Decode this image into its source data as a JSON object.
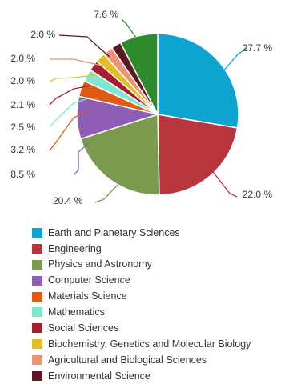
{
  "chart_data": {
    "type": "pie",
    "title": "",
    "start": "12 o'clock",
    "direction": "clockwise",
    "slices": [
      {
        "label": "Earth and Planetary Sciences",
        "value": 27.7,
        "display": "27.7 %",
        "color": "#0fa3cf"
      },
      {
        "label": "Engineering",
        "value": 22.0,
        "display": "22.0 %",
        "color": "#b7363e"
      },
      {
        "label": "Physics and Astronomy",
        "value": 20.4,
        "display": "20.4 %",
        "color": "#7a9a4e"
      },
      {
        "label": "Computer Science",
        "value": 8.5,
        "display": "8.5 %",
        "color": "#8e5eb5"
      },
      {
        "label": "Materials Science",
        "value": 3.2,
        "display": "3.2 %",
        "color": "#e05a12"
      },
      {
        "label": "Mathematics",
        "value": 2.5,
        "display": "2.5 %",
        "color": "#7fe6d4"
      },
      {
        "label": "Social Sciences",
        "value": 2.1,
        "display": "2.1 %",
        "color": "#a3202e"
      },
      {
        "label": "Biochemistry, Genetics and Molecular Biology",
        "value": 2.0,
        "display": "2.0 %",
        "color": "#e3be28"
      },
      {
        "label": "Agricultural and Biological Sciences",
        "value": 2.0,
        "display": "2.0 %",
        "color": "#eb9374"
      },
      {
        "label": "Environmental Science",
        "value": 2.0,
        "display": "2.0 %",
        "color": "#5b1a22"
      },
      {
        "label": "",
        "value": 7.6,
        "display": "7.6 %",
        "color": "#2f8a2c"
      }
    ],
    "legend_position": "bottom"
  }
}
